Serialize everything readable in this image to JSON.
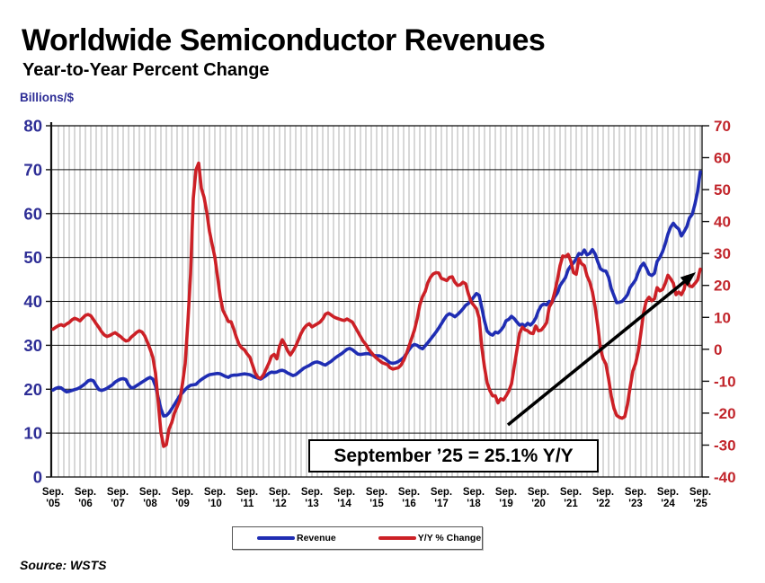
{
  "header": {
    "title": "Worldwide Semiconductor Revenues",
    "subtitle": "Year-to-Year Percent Change"
  },
  "source": "Source: WSTS",
  "legend": {
    "items": [
      {
        "label": "Revenue",
        "color": "#1f2db3"
      },
      {
        "label": "Y/Y % Change",
        "color": "#cc2026"
      }
    ]
  },
  "chart_data": {
    "type": "line",
    "title": "Worldwide Semiconductor Revenues",
    "subtitle": "Year-to-Year Percent Change",
    "x_unit": "month",
    "x_range": "Sep 2005 - Sep 2025",
    "x_tick_month": "Sep.",
    "x_tick_years": [
      "'05",
      "'06",
      "'07",
      "'08",
      "'09",
      "'10",
      "'11",
      "'12",
      "'13",
      "'14",
      "'15",
      "'16",
      "'17",
      "'18",
      "'19",
      "'20",
      "'21",
      "'22",
      "'23",
      "'24",
      "'25"
    ],
    "left_axis": {
      "label": "Billions/$",
      "min": 0,
      "max": 80,
      "ticks": [
        0,
        10,
        20,
        30,
        40,
        50,
        60,
        70,
        80
      ],
      "color": "#2e2e96"
    },
    "right_axis": {
      "label": "Y/Y % Change",
      "min": -40,
      "max": 70,
      "ticks": [
        -40,
        -30,
        -20,
        -10,
        0,
        10,
        20,
        30,
        40,
        50,
        60,
        70
      ],
      "color": "#c2262c"
    },
    "grid": {
      "vertical_every_months": 2,
      "horizontal_every_left_units": 10
    },
    "annotation": "September ’25 = 25.1% Y/Y",
    "series": [
      {
        "name": "Revenue",
        "axis": "left",
        "color": "#1f2db3",
        "values": [
          19.8,
          20.2,
          20.4,
          20.3,
          19.8,
          19.4,
          19.5,
          19.7,
          19.9,
          20.1,
          20.4,
          20.8,
          21.3,
          21.9,
          22.1,
          21.9,
          20.8,
          19.9,
          19.7,
          19.9,
          20.2,
          20.6,
          21.0,
          21.6,
          22.0,
          22.3,
          22.4,
          22.2,
          21.0,
          20.3,
          20.4,
          20.8,
          21.2,
          21.6,
          22.0,
          22.4,
          22.7,
          22.3,
          20.7,
          18.1,
          15.5,
          13.9,
          14.0,
          14.6,
          15.5,
          16.5,
          17.5,
          18.5,
          19.2,
          19.9,
          20.5,
          20.9,
          21.0,
          21.1,
          21.7,
          22.2,
          22.6,
          23.0,
          23.3,
          23.4,
          23.5,
          23.6,
          23.5,
          23.2,
          22.9,
          22.7,
          23.1,
          23.2,
          23.2,
          23.3,
          23.4,
          23.5,
          23.4,
          23.3,
          23.0,
          22.7,
          22.5,
          22.3,
          22.7,
          23.1,
          23.6,
          23.9,
          23.8,
          23.9,
          24.2,
          24.3,
          24.1,
          23.7,
          23.4,
          23.1,
          23.3,
          23.8,
          24.3,
          24.8,
          25.1,
          25.4,
          25.8,
          26.1,
          26.2,
          26.0,
          25.7,
          25.5,
          25.9,
          26.3,
          26.8,
          27.3,
          27.7,
          28.1,
          28.6,
          29.1,
          29.3,
          29.0,
          28.5,
          28.0,
          27.9,
          28.0,
          28.1,
          28.1,
          27.9,
          27.7,
          27.6,
          27.6,
          27.4,
          27.0,
          26.5,
          26.0,
          25.9,
          26.0,
          26.3,
          26.7,
          27.2,
          28.0,
          29.0,
          29.8,
          30.2,
          30.0,
          29.5,
          29.2,
          29.9,
          30.6,
          31.4,
          32.2,
          33.0,
          33.9,
          34.9,
          35.9,
          36.8,
          37.2,
          36.9,
          36.5,
          37.0,
          37.6,
          38.3,
          39.1,
          39.5,
          40.2,
          41.0,
          41.8,
          41.4,
          38.5,
          35.5,
          33.2,
          32.6,
          32.3,
          33.0,
          32.8,
          33.4,
          34.2,
          35.6,
          35.9,
          36.6,
          36.1,
          35.3,
          34.6,
          34.8,
          34.4,
          35.0,
          34.6,
          35.2,
          36.2,
          37.9,
          39.0,
          39.4,
          39.2,
          40.0,
          39.7,
          41.0,
          41.9,
          43.6,
          44.5,
          45.4,
          47.2,
          48.1,
          48.8,
          49.7,
          50.9,
          50.7,
          51.7,
          50.6,
          50.9,
          51.8,
          50.8,
          49.0,
          47.4,
          47.0,
          46.9,
          45.5,
          42.9,
          41.3,
          39.7,
          39.8,
          40.0,
          40.7,
          41.5,
          43.2,
          44.0,
          44.9,
          46.6,
          48.0,
          48.7,
          47.6,
          46.2,
          45.9,
          46.4,
          49.1,
          50.0,
          51.3,
          53.1,
          55.3,
          56.9,
          57.8,
          57.0,
          56.5,
          54.9,
          55.9,
          57.0,
          59.0,
          59.8,
          62.1,
          65.0,
          69.5
        ]
      },
      {
        "name": "Y/Y % Change",
        "axis": "right",
        "color": "#cc2026",
        "values": [
          6.3,
          6.9,
          7.4,
          7.7,
          7.3,
          7.9,
          8.4,
          9.2,
          9.7,
          9.4,
          8.9,
          9.8,
          10.6,
          10.9,
          10.5,
          9.3,
          8.0,
          6.8,
          5.5,
          4.5,
          4.0,
          4.3,
          4.8,
          5.2,
          4.6,
          4.0,
          3.2,
          2.6,
          2.8,
          3.8,
          4.5,
          5.3,
          5.8,
          5.4,
          4.2,
          2.2,
          0.0,
          -2.5,
          -7.5,
          -16.5,
          -26.0,
          -30.4,
          -29.9,
          -25.0,
          -23.0,
          -20.0,
          -18.0,
          -16.0,
          -10.8,
          -4.5,
          8.5,
          23.7,
          47.2,
          56.2,
          58.3,
          50.4,
          47.6,
          43.0,
          37.0,
          32.8,
          28.9,
          22.7,
          16.5,
          12.2,
          10.5,
          8.7,
          8.6,
          6.4,
          3.7,
          1.5,
          0.4,
          -0.2,
          -1.5,
          -2.5,
          -5.0,
          -7.5,
          -8.8,
          -9.1,
          -8.0,
          -6.2,
          -4.4,
          -2.2,
          -1.6,
          -3.0,
          1.0,
          3.0,
          1.5,
          -0.5,
          -1.8,
          -0.5,
          1.0,
          3.0,
          5.0,
          6.5,
          7.5,
          8.0,
          7.0,
          7.5,
          8.0,
          8.5,
          9.5,
          11.0,
          11.4,
          10.8,
          10.2,
          9.8,
          9.5,
          9.2,
          9.0,
          9.5,
          9.0,
          8.5,
          7.0,
          5.5,
          4.0,
          2.5,
          1.5,
          0.0,
          -1.0,
          -2.0,
          -2.8,
          -3.5,
          -4.2,
          -4.5,
          -4.8,
          -5.8,
          -6.2,
          -6.0,
          -5.8,
          -5.0,
          -3.5,
          -1.5,
          1.0,
          3.5,
          6.0,
          9.5,
          13.9,
          16.5,
          18.1,
          20.9,
          22.6,
          23.6,
          24.0,
          23.9,
          22.2,
          21.9,
          21.5,
          22.5,
          22.7,
          21.0,
          20.0,
          20.2,
          21.0,
          20.5,
          17.4,
          14.9,
          13.8,
          12.7,
          9.8,
          0.6,
          -5.7,
          -10.6,
          -13.0,
          -14.6,
          -14.6,
          -16.8,
          -15.5,
          -15.9,
          -14.6,
          -13.1,
          -10.8,
          -5.5,
          -0.3,
          5.0,
          6.9,
          6.1,
          5.8,
          5.1,
          4.9,
          7.3,
          5.8,
          6.0,
          7.0,
          8.3,
          13.2,
          14.7,
          17.8,
          21.7,
          26.2,
          29.2,
          29.0,
          29.7,
          27.6,
          24.0,
          23.5,
          28.3,
          26.8,
          26.2,
          23.0,
          21.1,
          18.0,
          13.3,
          7.3,
          0.1,
          -3.0,
          -4.6,
          -9.2,
          -14.7,
          -18.5,
          -20.7,
          -21.3,
          -21.6,
          -21.1,
          -17.3,
          -11.8,
          -6.8,
          -4.5,
          -0.7,
          5.3,
          11.6,
          15.2,
          16.3,
          15.2,
          15.8,
          19.3,
          18.3,
          18.7,
          20.6,
          23.2,
          22.1,
          20.7,
          17.1,
          17.9,
          17.1,
          18.8,
          22.7,
          19.8,
          19.6,
          20.6,
          21.7,
          25.1
        ]
      }
    ]
  }
}
